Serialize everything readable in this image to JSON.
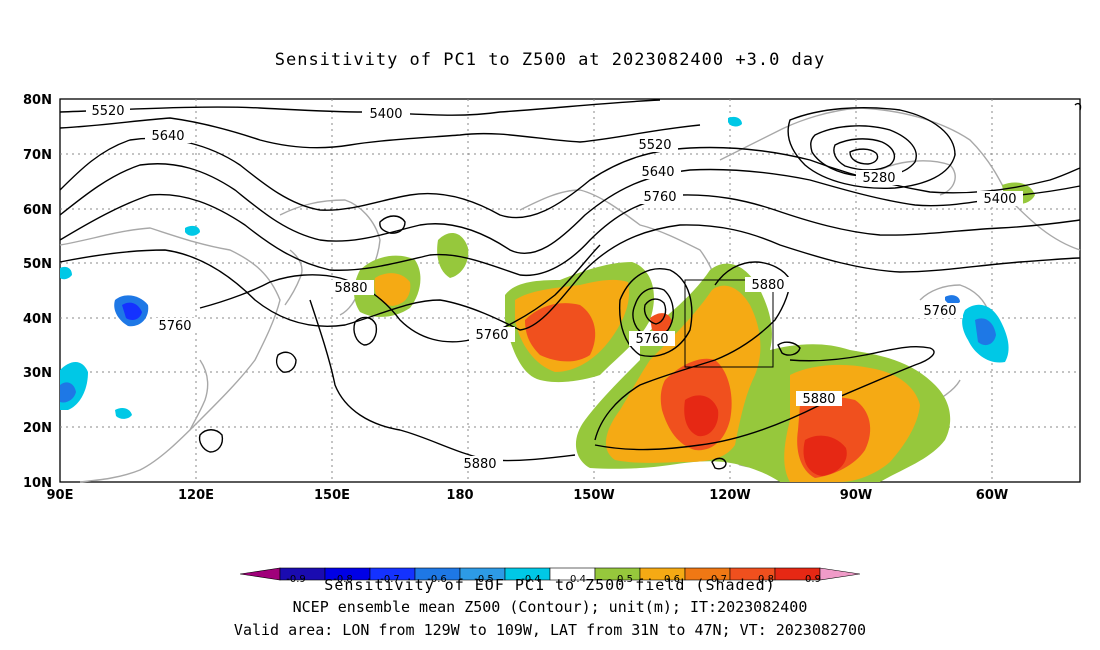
{
  "title": "Sensitivity of PC1 to Z500 at 2023082400 +3.0 day",
  "axes": {
    "lat_labels": [
      "80N",
      "70N",
      "60N",
      "50N",
      "40N",
      "30N",
      "20N",
      "10N"
    ],
    "lon_labels": [
      "90E",
      "120E",
      "150E",
      "180",
      "150W",
      "120W",
      "90W",
      "60W"
    ]
  },
  "contour_labels": [
    "5520",
    "5400",
    "5640",
    "5520",
    "5640",
    "5760",
    "5280",
    "5400",
    "5880",
    "5760",
    "5760",
    "5760",
    "5880",
    "5880",
    "5760",
    "5880"
  ],
  "colorbar": {
    "ticks": [
      "-0.9",
      "-0.8",
      "-0.7",
      "-0.6",
      "-0.5",
      "-0.4",
      "0.4",
      "0.5",
      "0.6",
      "0.7",
      "0.8",
      "0.9"
    ],
    "colors": [
      "#a0007a",
      "#1a0bb0",
      "#0000e6",
      "#1432ff",
      "#1e78e6",
      "#2d9be6",
      "#00c8e6",
      "#ffffff",
      "#96c83c",
      "#f5aa14",
      "#f07814",
      "#f0501e",
      "#e62814",
      "#f09bc8"
    ],
    "label": "Sensitivity of EOF PC1 to Z500 field (Shaded)"
  },
  "caption_line1": "NCEP ensemble mean Z500 (Contour); unit(m); IT:2023082400",
  "caption_line2": "Valid area: LON from 129W to 109W, LAT from 31N to 47N; VT: 2023082700"
}
